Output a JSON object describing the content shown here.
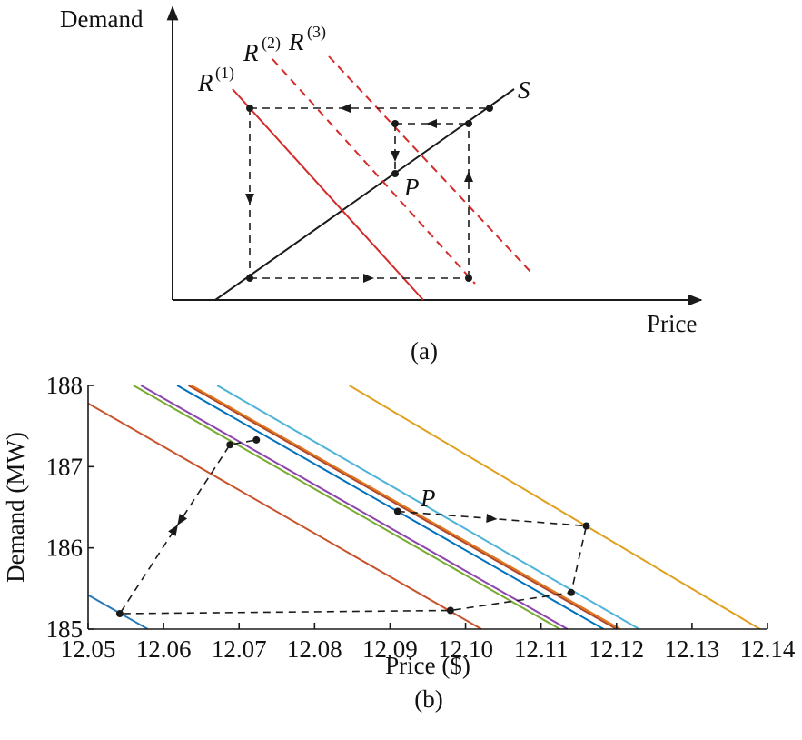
{
  "chart_data": [
    {
      "type": "line",
      "panel_label": "(a)",
      "xlabel": "Price",
      "ylabel": "Demand",
      "supply_label": "S",
      "point_label": "P",
      "response_curves": [
        {
          "base": "R",
          "sup": "(1)",
          "style": "solid"
        },
        {
          "base": "R",
          "sup": "(2)",
          "style": "dashed"
        },
        {
          "base": "R",
          "sup": "(3)",
          "style": "dashed"
        }
      ],
      "colors": {
        "supply": "#1a1a1a",
        "response": "#d42a2a",
        "path": "#1a1a1a"
      }
    },
    {
      "type": "line",
      "panel_label": "(b)",
      "xlabel": "Price ($)",
      "ylabel": "Demand (MW)",
      "point_label": "P",
      "xlim": [
        12.05,
        12.14
      ],
      "ylim": [
        185,
        188
      ],
      "x_ticks": [
        "12.05",
        "12.06",
        "12.07",
        "12.08",
        "12.09",
        "12.10",
        "12.11",
        "12.12",
        "12.13",
        "12.14"
      ],
      "y_ticks": [
        "185",
        "186",
        "187",
        "188"
      ],
      "series": [
        {
          "color": "#2a7ab8",
          "x": [
            12.05,
            12.0579
          ],
          "y": [
            185.42,
            185.0
          ]
        },
        {
          "color": "#c8522a",
          "x": [
            12.05,
            12.1021
          ],
          "y": [
            187.78,
            185.0
          ]
        },
        {
          "color": "#77ac30",
          "x": [
            12.056,
            12.1125
          ],
          "y": [
            188.0,
            185.0
          ]
        },
        {
          "color": "#8e44ad",
          "x": [
            12.057,
            12.1135
          ],
          "y": [
            188.0,
            185.0
          ]
        },
        {
          "color": "#0072bd",
          "x": [
            12.0618,
            12.1183
          ],
          "y": [
            188.0,
            185.0
          ]
        },
        {
          "color": "#b0452a",
          "x": [
            12.0633,
            12.12
          ],
          "y": [
            188.0,
            185.0
          ]
        },
        {
          "color": "#e0781e",
          "x": [
            12.0637,
            12.1205
          ],
          "y": [
            188.0,
            185.0
          ]
        },
        {
          "color": "#4db3d8",
          "x": [
            12.0671,
            12.123
          ],
          "y": [
            188.0,
            185.0
          ]
        },
        {
          "color": "#e0a020",
          "x": [
            12.0846,
            12.139
          ],
          "y": [
            188.0,
            185.0
          ]
        }
      ],
      "iteration_points": [
        {
          "x": 12.091,
          "y": 186.45
        },
        {
          "x": 12.116,
          "y": 186.27
        },
        {
          "x": 12.114,
          "y": 185.45
        },
        {
          "x": 12.098,
          "y": 185.23
        },
        {
          "x": 12.0542,
          "y": 185.19
        },
        {
          "x": 12.0688,
          "y": 187.27
        },
        {
          "x": 12.0723,
          "y": 187.33
        }
      ],
      "path_color": "#1a1a1a"
    }
  ]
}
